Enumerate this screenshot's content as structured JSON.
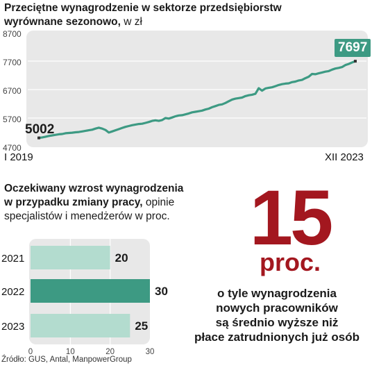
{
  "line_chart": {
    "title_bold": "Przeciętne wynagrodzenie w sektorze przedsiębiorstw",
    "title_bold2": "wyrównane sezonowo,",
    "title_light": " w zł",
    "y_ticks": [
      "8700",
      "7700",
      "6700",
      "5700",
      "4700"
    ],
    "x_start": "I 2019",
    "x_end": "XII 2023",
    "start_value_label": "5002",
    "end_value_label": "7697"
  },
  "bar_chart": {
    "title_bold1": "Oczekiwany wzrost wynagrodzenia",
    "title_bold2": "w przypadku zmiany pracy,",
    "title_light1": " opinie",
    "title_light2": "specjalistów i menedżerów w proc.",
    "x_ticks": [
      "0",
      "10",
      "20",
      "30"
    ]
  },
  "highlight": {
    "number": "15",
    "unit": "proc.",
    "line1": "o tyle wynagrodzenia",
    "line2": "nowych pracowników",
    "line3": "są średnio wyższe niż",
    "line4": "płace zatrudnionych już osób",
    "color": "#a3171f"
  },
  "source": "Źródło: GUS, Antal, ManpowerGroup",
  "colors": {
    "line": "#3d9a83",
    "bar_light": "#b3dccf",
    "bar_dark": "#3d9a83",
    "panel": "#e8e8e8"
  },
  "chart_data": [
    {
      "type": "line",
      "title": "Przeciętne wynagrodzenie w sektorze przedsiębiorstw wyrównane sezonowo, w zł",
      "ylim": [
        4700,
        8700
      ],
      "x_range": [
        "I 2019",
        "XII 2023"
      ],
      "grid": true,
      "values": [
        5002,
        5020,
        5045,
        5070,
        5090,
        5110,
        5130,
        5140,
        5165,
        5175,
        5185,
        5200,
        5210,
        5230,
        5250,
        5270,
        5290,
        5330,
        5360,
        5330,
        5280,
        5190,
        5230,
        5270,
        5310,
        5350,
        5390,
        5420,
        5450,
        5470,
        5490,
        5500,
        5530,
        5560,
        5600,
        5620,
        5600,
        5630,
        5700,
        5680,
        5720,
        5760,
        5790,
        5800,
        5830,
        5860,
        5900,
        5920,
        5940,
        5960,
        6000,
        6030,
        6080,
        6120,
        6160,
        6180,
        6230,
        6290,
        6350,
        6380,
        6400,
        6420,
        6470,
        6500,
        6520,
        6550,
        6750,
        6660,
        6740,
        6760,
        6780,
        6820,
        6860,
        6890,
        6910,
        6920,
        6960,
        6980,
        7020,
        7040,
        7100,
        7150,
        7250,
        7240,
        7270,
        7300,
        7330,
        7350,
        7400,
        7440,
        7460,
        7490,
        7560,
        7600,
        7650,
        7697
      ]
    },
    {
      "type": "bar",
      "orientation": "horizontal",
      "title": "Oczekiwany wzrost wynagrodzenia w przypadku zmiany pracy, opinie specjalistów i menedżerów w proc.",
      "categories": [
        "2021",
        "2022",
        "2023"
      ],
      "values": [
        20,
        30,
        25
      ],
      "xlim": [
        0,
        30
      ],
      "highlighted": "2022"
    }
  ]
}
